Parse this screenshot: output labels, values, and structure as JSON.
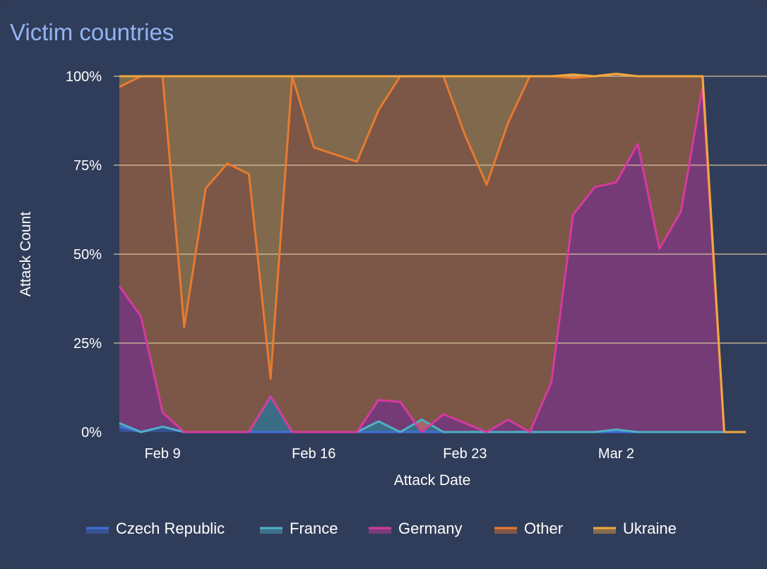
{
  "panel": {
    "title": "Victim countries"
  },
  "chart_data": {
    "type": "area",
    "stacked": "percent",
    "xlabel": "Attack Date",
    "ylabel": "Attack Count",
    "x": [
      "Feb 7",
      "Feb 8",
      "Feb 9",
      "Feb 10",
      "Feb 11",
      "Feb 12",
      "Feb 13",
      "Feb 14",
      "Feb 15",
      "Feb 16",
      "Feb 17",
      "Feb 18",
      "Feb 19",
      "Feb 20",
      "Feb 21",
      "Feb 22",
      "Feb 23",
      "Feb 24",
      "Feb 25",
      "Feb 26",
      "Feb 27",
      "Feb 28",
      "Mar 1",
      "Mar 2",
      "Mar 3",
      "Mar 4",
      "Mar 5",
      "Mar 6",
      "Mar 7",
      "Mar 8"
    ],
    "x_ticks": [
      "Feb 9",
      "Feb 16",
      "Feb 23",
      "Mar 2"
    ],
    "y_ticks": [
      "0%",
      "25%",
      "50%",
      "75%",
      "100%"
    ],
    "ylim": [
      0,
      100
    ],
    "grid": true,
    "legend_position": "bottom",
    "series": [
      {
        "name": "Czech Republic",
        "color": "#3f6fd8",
        "values": [
          1.5,
          0,
          1.5,
          0,
          0,
          0,
          0,
          0,
          0,
          0,
          0,
          0,
          0,
          0,
          0,
          0,
          0,
          0,
          0,
          0,
          0,
          0,
          0,
          0,
          0,
          0,
          0,
          0,
          0,
          0
        ]
      },
      {
        "name": "France",
        "color": "#4fb0c6",
        "values": [
          1,
          0,
          0,
          0,
          0,
          0,
          0,
          10,
          0,
          0,
          0,
          0,
          3,
          0,
          3.5,
          0,
          0,
          0,
          0,
          0,
          0,
          0,
          0,
          0.7,
          0,
          0,
          0,
          0,
          0,
          0
        ]
      },
      {
        "name": "Germany",
        "color": "#d63aa0",
        "values": [
          38.5,
          32.5,
          4,
          0,
          0,
          0,
          0,
          0,
          0,
          0,
          0,
          0,
          6,
          8.5,
          -3.5,
          5,
          2.5,
          0,
          3.5,
          0,
          14,
          61,
          68.8,
          69.5,
          81,
          51.5,
          62,
          97,
          0,
          0
        ]
      },
      {
        "name": "Other",
        "color": "#e87a2e",
        "values": [
          56,
          67.5,
          94.5,
          29.5,
          68.5,
          75.5,
          72.5,
          5,
          100,
          80,
          78,
          76,
          81.5,
          91.5,
          100,
          95,
          81,
          69.5,
          83.5,
          100,
          86,
          38.5,
          31.2,
          30.5,
          19,
          48.5,
          38,
          3,
          0,
          0
        ]
      },
      {
        "name": "Ukraine",
        "color": "#f0a83c",
        "values": [
          3,
          0,
          0,
          70.5,
          31.5,
          24.5,
          27.5,
          85,
          0,
          20,
          22,
          24,
          9.5,
          0,
          0,
          0,
          16.5,
          30.5,
          13,
          0,
          0,
          1,
          0,
          0,
          0,
          0,
          0,
          0,
          0,
          0
        ]
      }
    ]
  },
  "legend": {
    "items": [
      {
        "label": "Czech Republic",
        "color": "#3f6fd8"
      },
      {
        "label": "France",
        "color": "#4fb0c6"
      },
      {
        "label": "Germany",
        "color": "#d63aa0"
      },
      {
        "label": "Other",
        "color": "#e87a2e"
      },
      {
        "label": "Ukraine",
        "color": "#f0a83c"
      }
    ]
  }
}
